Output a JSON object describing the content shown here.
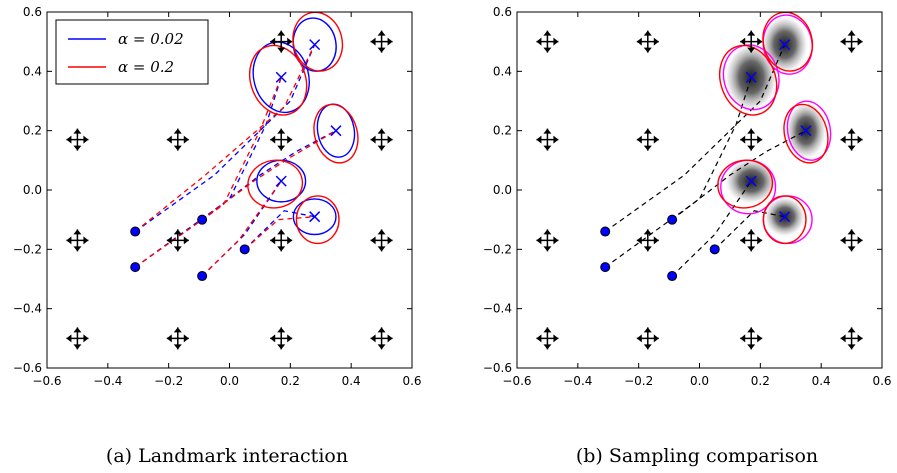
{
  "chart_data": [
    {
      "type": "scatter",
      "caption": "(a) Landmark interaction",
      "xlim": [
        -0.6,
        0.6
      ],
      "ylim": [
        -0.6,
        0.6
      ],
      "xticks": [
        "−0.6",
        "−0.4",
        "−0.2",
        "0.0",
        "0.2",
        "0.4",
        "0.6"
      ],
      "yticks": [
        "−0.6",
        "−0.4",
        "−0.2",
        "0.0",
        "0.2",
        "0.4",
        "0.6"
      ],
      "grid": false,
      "legend": {
        "placement": "top-left",
        "entries": [
          {
            "label": "α = 0.02",
            "color": "#0000ff"
          },
          {
            "label": "α = 0.2",
            "color": "#ff0000"
          }
        ]
      },
      "landmarks": [
        [
          -0.5,
          0.5
        ],
        [
          -0.17,
          0.5
        ],
        [
          0.17,
          0.5
        ],
        [
          0.5,
          0.5
        ],
        [
          -0.5,
          0.17
        ],
        [
          -0.17,
          0.17
        ],
        [
          0.17,
          0.17
        ],
        [
          0.5,
          0.17
        ],
        [
          -0.5,
          -0.17
        ],
        [
          -0.17,
          -0.17
        ],
        [
          0.17,
          -0.17
        ],
        [
          0.5,
          -0.17
        ],
        [
          -0.5,
          -0.5
        ],
        [
          -0.17,
          -0.5
        ],
        [
          0.17,
          -0.5
        ],
        [
          0.5,
          -0.5
        ]
      ],
      "initial_points": [
        [
          -0.31,
          -0.14
        ],
        [
          -0.31,
          -0.26
        ],
        [
          -0.09,
          -0.1
        ],
        [
          0.05,
          -0.2
        ],
        [
          -0.09,
          -0.29
        ]
      ],
      "targets": [
        [
          0.17,
          0.38
        ],
        [
          0.28,
          0.49
        ],
        [
          0.35,
          0.2
        ],
        [
          0.17,
          0.03
        ],
        [
          0.28,
          -0.09
        ]
      ],
      "series": [
        {
          "name": "α = 0.02",
          "color": "#0000ff",
          "paths": [
            [
              [
                -0.31,
                -0.14
              ],
              [
                -0.05,
                0.05
              ],
              [
                0.2,
                0.3
              ],
              [
                0.28,
                0.49
              ]
            ],
            [
              [
                -0.31,
                -0.26
              ],
              [
                0.0,
                -0.03
              ],
              [
                0.12,
                0.22
              ],
              [
                0.17,
                0.38
              ]
            ],
            [
              [
                -0.09,
                -0.1
              ],
              [
                0.1,
                0.05
              ],
              [
                0.22,
                0.13
              ],
              [
                0.35,
                0.2
              ]
            ],
            [
              [
                0.05,
                -0.2
              ],
              [
                0.18,
                -0.07
              ],
              [
                0.28,
                -0.09
              ]
            ],
            [
              [
                -0.09,
                -0.29
              ],
              [
                0.05,
                -0.15
              ],
              [
                0.17,
                0.03
              ]
            ]
          ],
          "ellipses": [
            {
              "cx": 0.17,
              "cy": 0.38,
              "rx": 0.09,
              "ry": 0.12,
              "angle": 15
            },
            {
              "cx": 0.28,
              "cy": 0.49,
              "rx": 0.07,
              "ry": 0.09,
              "angle": 10
            },
            {
              "cx": 0.35,
              "cy": 0.2,
              "rx": 0.06,
              "ry": 0.09,
              "angle": 10
            },
            {
              "cx": 0.17,
              "cy": 0.03,
              "rx": 0.08,
              "ry": 0.07,
              "angle": 0
            },
            {
              "cx": 0.28,
              "cy": -0.09,
              "rx": 0.07,
              "ry": 0.06,
              "angle": 0
            }
          ]
        },
        {
          "name": "α = 0.2",
          "color": "#ff0000",
          "paths": [
            [
              [
                -0.31,
                -0.14
              ],
              [
                -0.08,
                0.05
              ],
              [
                0.18,
                0.28
              ],
              [
                0.28,
                0.49
              ]
            ],
            [
              [
                -0.31,
                -0.26
              ],
              [
                -0.02,
                -0.05
              ],
              [
                0.1,
                0.2
              ],
              [
                0.17,
                0.38
              ]
            ],
            [
              [
                -0.09,
                -0.1
              ],
              [
                0.08,
                0.03
              ],
              [
                0.2,
                0.11
              ],
              [
                0.35,
                0.2
              ]
            ],
            [
              [
                0.05,
                -0.2
              ],
              [
                0.16,
                -0.1
              ],
              [
                0.28,
                -0.09
              ]
            ],
            [
              [
                -0.09,
                -0.29
              ],
              [
                0.03,
                -0.17
              ],
              [
                0.17,
                0.03
              ]
            ]
          ],
          "ellipses": [
            {
              "cx": 0.16,
              "cy": 0.37,
              "rx": 0.09,
              "ry": 0.12,
              "angle": 20
            },
            {
              "cx": 0.29,
              "cy": 0.5,
              "rx": 0.08,
              "ry": 0.1,
              "angle": 15
            },
            {
              "cx": 0.35,
              "cy": 0.19,
              "rx": 0.07,
              "ry": 0.1,
              "angle": 15
            },
            {
              "cx": 0.15,
              "cy": 0.02,
              "rx": 0.09,
              "ry": 0.08,
              "angle": 10
            },
            {
              "cx": 0.29,
              "cy": -0.1,
              "rx": 0.07,
              "ry": 0.08,
              "angle": 0
            }
          ]
        }
      ]
    },
    {
      "type": "scatter",
      "caption": "(b) Sampling comparison",
      "xlim": [
        -0.6,
        0.6
      ],
      "ylim": [
        -0.6,
        0.6
      ],
      "xticks": [
        "−0.6",
        "−0.4",
        "−0.2",
        "0.0",
        "0.2",
        "0.4",
        "0.6"
      ],
      "yticks": [
        "−0.6",
        "−0.4",
        "−0.2",
        "0.0",
        "0.2",
        "0.4",
        "0.6"
      ],
      "grid": false,
      "landmarks": [
        [
          -0.5,
          0.5
        ],
        [
          -0.17,
          0.5
        ],
        [
          0.17,
          0.5
        ],
        [
          0.5,
          0.5
        ],
        [
          -0.5,
          0.17
        ],
        [
          -0.17,
          0.17
        ],
        [
          0.17,
          0.17
        ],
        [
          0.5,
          0.17
        ],
        [
          -0.5,
          -0.17
        ],
        [
          -0.17,
          -0.17
        ],
        [
          0.17,
          -0.17
        ],
        [
          0.5,
          -0.17
        ],
        [
          -0.5,
          -0.5
        ],
        [
          -0.17,
          -0.5
        ],
        [
          0.17,
          -0.5
        ],
        [
          0.5,
          -0.5
        ]
      ],
      "initial_points": [
        [
          -0.31,
          -0.14
        ],
        [
          -0.31,
          -0.26
        ],
        [
          -0.09,
          -0.1
        ],
        [
          0.05,
          -0.2
        ],
        [
          -0.09,
          -0.29
        ]
      ],
      "targets": [
        [
          0.17,
          0.38
        ],
        [
          0.28,
          0.49
        ],
        [
          0.35,
          0.2
        ],
        [
          0.17,
          0.03
        ],
        [
          0.28,
          -0.09
        ]
      ],
      "paths": {
        "color": "#000000",
        "lines": [
          [
            [
              -0.31,
              -0.14
            ],
            [
              -0.05,
              0.05
            ],
            [
              0.2,
              0.3
            ],
            [
              0.28,
              0.49
            ]
          ],
          [
            [
              -0.31,
              -0.26
            ],
            [
              0.0,
              -0.03
            ],
            [
              0.12,
              0.22
            ],
            [
              0.17,
              0.38
            ]
          ],
          [
            [
              -0.09,
              -0.1
            ],
            [
              0.1,
              0.05
            ],
            [
              0.22,
              0.13
            ],
            [
              0.35,
              0.2
            ]
          ],
          [
            [
              0.05,
              -0.2
            ],
            [
              0.18,
              -0.07
            ],
            [
              0.28,
              -0.09
            ]
          ],
          [
            [
              -0.09,
              -0.29
            ],
            [
              0.05,
              -0.15
            ],
            [
              0.17,
              0.03
            ]
          ]
        ]
      },
      "densities": [
        {
          "cx": 0.17,
          "cy": 0.38,
          "rx": 0.09,
          "ry": 0.12
        },
        {
          "cx": 0.28,
          "cy": 0.49,
          "rx": 0.08,
          "ry": 0.1
        },
        {
          "cx": 0.35,
          "cy": 0.2,
          "rx": 0.07,
          "ry": 0.1
        },
        {
          "cx": 0.17,
          "cy": 0.03,
          "rx": 0.09,
          "ry": 0.08
        },
        {
          "cx": 0.28,
          "cy": -0.09,
          "rx": 0.07,
          "ry": 0.07
        }
      ],
      "ellipse_sets": [
        {
          "color": "#ff00ff",
          "ellipses": [
            {
              "cx": 0.17,
              "cy": 0.38,
              "rx": 0.09,
              "ry": 0.11,
              "angle": 15
            },
            {
              "cx": 0.29,
              "cy": 0.49,
              "rx": 0.08,
              "ry": 0.1,
              "angle": 10
            },
            {
              "cx": 0.36,
              "cy": 0.2,
              "rx": 0.07,
              "ry": 0.1,
              "angle": 10
            },
            {
              "cx": 0.16,
              "cy": 0.01,
              "rx": 0.09,
              "ry": 0.09,
              "angle": 0
            },
            {
              "cx": 0.29,
              "cy": -0.1,
              "rx": 0.08,
              "ry": 0.08,
              "angle": 0
            }
          ]
        },
        {
          "color": "#ff0000",
          "ellipses": [
            {
              "cx": 0.16,
              "cy": 0.37,
              "rx": 0.09,
              "ry": 0.12,
              "angle": 20
            },
            {
              "cx": 0.29,
              "cy": 0.5,
              "rx": 0.08,
              "ry": 0.1,
              "angle": 15
            },
            {
              "cx": 0.35,
              "cy": 0.19,
              "rx": 0.07,
              "ry": 0.1,
              "angle": 15
            },
            {
              "cx": 0.15,
              "cy": 0.02,
              "rx": 0.09,
              "ry": 0.08,
              "angle": 10
            },
            {
              "cx": 0.28,
              "cy": -0.1,
              "rx": 0.07,
              "ry": 0.08,
              "angle": 0
            }
          ]
        }
      ]
    }
  ]
}
